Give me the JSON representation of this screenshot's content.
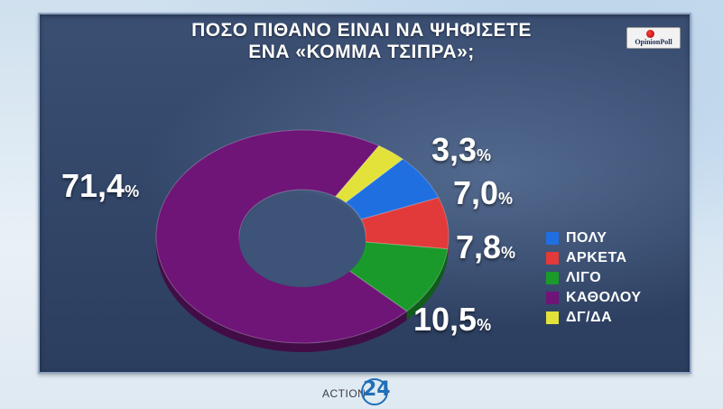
{
  "title_line1": "ΠΟΣΟ ΠΙΘΑΝΟ ΕΙΝΑΙ ΝΑ ΨΗΦΙΣΕΤΕ",
  "title_line2": "ΕΝΑ «ΚΟΜΜΑ ΤΣΙΠΡΑ»;",
  "source_logo": "OpinionPoll",
  "footer_brand": "ACTION",
  "footer_number": "24",
  "percent_sign": "%",
  "colors": {
    "poly": "#1f6fe0",
    "arketa": "#e23a3a",
    "ligo": "#1a9a2a",
    "katholou": "#6e1577",
    "dgda": "#e3e23a"
  },
  "chart_data": {
    "type": "pie",
    "title": "ΠΟΣΟ ΠΙΘΑΝΟ ΕΙΝΑΙ ΝΑ ΨΗΦΙΣΕΤΕ ΕΝΑ «ΚΟΜΜΑ ΤΣΙΠΡΑ»;",
    "donut": true,
    "categories": [
      "ΠΟΛΥ",
      "ΑΡΚΕΤΑ",
      "ΛΙΓΟ",
      "ΚΑΘΟΛΟΥ",
      "ΔΓ/ΔΑ"
    ],
    "values": [
      7.0,
      7.8,
      10.5,
      71.4,
      3.3
    ],
    "labels": [
      "7,0",
      "7,8",
      "10,5",
      "71,4",
      "3,3"
    ],
    "legend_position": "right"
  }
}
